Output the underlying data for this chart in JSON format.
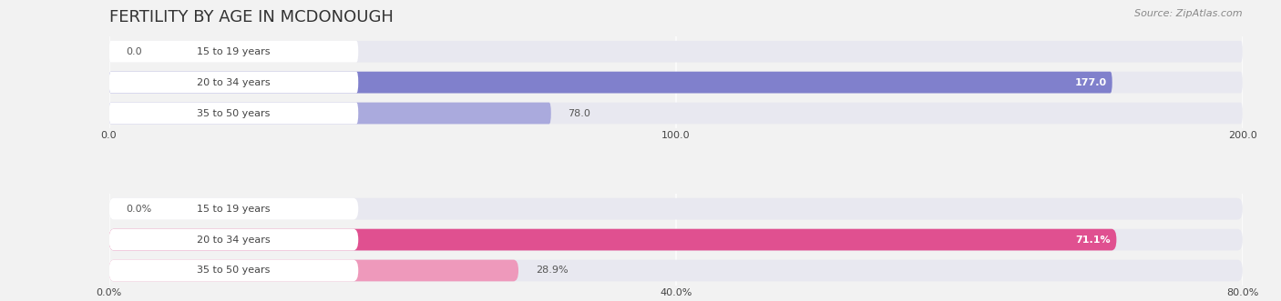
{
  "title": "FERTILITY BY AGE IN MCDONOUGH",
  "source": "Source: ZipAtlas.com",
  "top_chart": {
    "categories": [
      "15 to 19 years",
      "20 to 34 years",
      "35 to 50 years"
    ],
    "values": [
      0.0,
      177.0,
      78.0
    ],
    "xlim": [
      0,
      200
    ],
    "xticks": [
      0.0,
      100.0,
      200.0
    ],
    "xtick_labels": [
      "0.0",
      "100.0",
      "200.0"
    ],
    "bar_color_strong": "#8080cc",
    "bar_color_light": "#aaaadd",
    "bar_height": 0.7
  },
  "bottom_chart": {
    "categories": [
      "15 to 19 years",
      "20 to 34 years",
      "35 to 50 years"
    ],
    "values": [
      0.0,
      71.1,
      28.9
    ],
    "xlim": [
      0,
      80
    ],
    "xticks": [
      0.0,
      40.0,
      80.0
    ],
    "xtick_labels": [
      "0.0%",
      "40.0%",
      "80.0%"
    ],
    "bar_color_strong": "#e05090",
    "bar_color_light": "#ee99bb",
    "bar_height": 0.7
  },
  "background_color": "#f2f2f2",
  "bar_bg_color": "#e8e8f0",
  "bar_bg_color_bottom": "#f5e8ef",
  "label_bg_color": "#ffffff",
  "label_color": "#444444",
  "value_color_inside": "#ffffff",
  "value_color_outside": "#555555",
  "title_fontsize": 13,
  "label_fontsize": 8,
  "tick_fontsize": 8,
  "source_fontsize": 8
}
